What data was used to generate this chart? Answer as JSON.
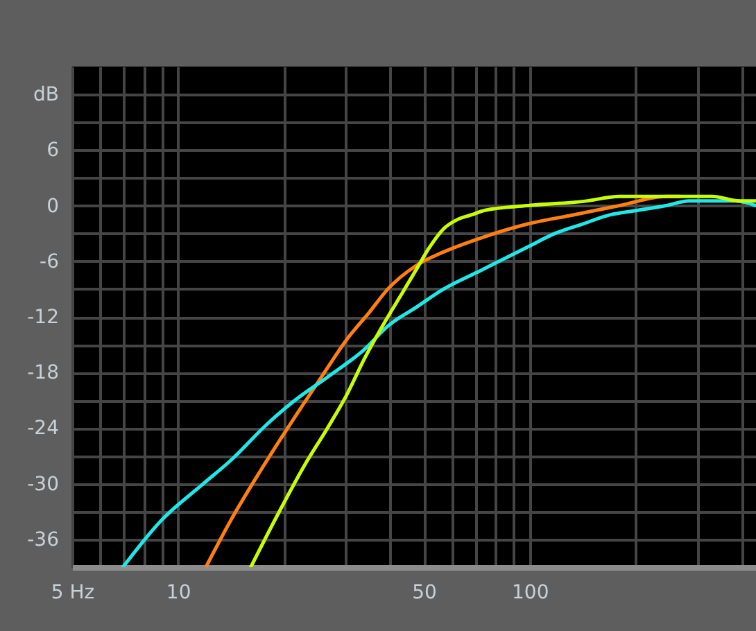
{
  "chart_data": {
    "type": "line",
    "log": "x",
    "grid": true,
    "xlim": [
      5,
      440
    ],
    "ylim": [
      -39,
      15
    ],
    "xticks": [
      {
        "value": 5,
        "label": "5 Hz"
      },
      {
        "value": 6,
        "label": null
      },
      {
        "value": 7,
        "label": null
      },
      {
        "value": 8,
        "label": null
      },
      {
        "value": 9,
        "label": null
      },
      10,
      {
        "value": 20,
        "label": null
      },
      {
        "value": 30,
        "label": null
      },
      {
        "value": 40,
        "label": null
      },
      50,
      {
        "value": 60,
        "label": null
      },
      {
        "value": 70,
        "label": null
      },
      {
        "value": 80,
        "label": null
      },
      {
        "value": 90,
        "label": null
      },
      100,
      {
        "value": 200,
        "label": null
      },
      {
        "value": 300,
        "label": null
      },
      {
        "value": 400,
        "label": null
      }
    ],
    "yticks": [
      -36,
      {
        "value": -33,
        "label": null
      },
      -30,
      {
        "value": -27,
        "label": null
      },
      -24,
      {
        "value": -21,
        "label": null
      },
      -18,
      {
        "value": -15,
        "label": null
      },
      -12,
      {
        "value": -9,
        "label": null
      },
      -6,
      {
        "value": -3,
        "label": null
      },
      0,
      {
        "value": 3,
        "label": null
      },
      6,
      {
        "value": 9,
        "label": null
      },
      {
        "value": 12,
        "label": "dB"
      }
    ],
    "series": [
      {
        "color": "#ff7f10",
        "x": [
          12.0,
          14.1,
          16.9,
          19.7,
          22.2,
          26.6,
          30.1,
          35.0,
          39.5,
          47.4,
          56.9,
          72.5,
          98.2,
          133,
          180,
          244,
          267
        ],
        "values": [
          -39,
          -34,
          -29,
          -25,
          -22,
          -17.5,
          -14.5,
          -11.5,
          -9,
          -6.5,
          -5,
          -3.5,
          -2,
          -1,
          0,
          1,
          1
        ]
      },
      {
        "color": "#20e8e8",
        "x": [
          6.97,
          8.94,
          11.8,
          14.1,
          18.0,
          21.5,
          26.6,
          33.9,
          39.5,
          47.4,
          56.9,
          72.5,
          98.2,
          118,
          141,
          169,
          203,
          244,
          284,
          385,
          440
        ],
        "values": [
          -39,
          -34,
          -30,
          -27.5,
          -23.5,
          -21,
          -18.5,
          -15.5,
          -13,
          -11,
          -9,
          -7,
          -4.5,
          -3,
          -2,
          -1,
          -0.5,
          0,
          0.5,
          0.5,
          0
        ]
      },
      {
        "color": "#c8ff00",
        "x": [
          16.1,
          19.1,
          22.9,
          26.6,
          30.1,
          33.9,
          39.5,
          43.3,
          47.4,
          51.9,
          56.9,
          62.3,
          68.2,
          74.7,
          98.2,
          145,
          180,
          244,
          330,
          395,
          440
        ],
        "values": [
          -39,
          -33.5,
          -28,
          -24,
          -20.5,
          -16.5,
          -12,
          -9.5,
          -7,
          -4.5,
          -2.5,
          -1.5,
          -1,
          -0.5,
          0,
          0.5,
          1,
          1,
          1,
          0.5,
          0.5
        ]
      }
    ]
  }
}
